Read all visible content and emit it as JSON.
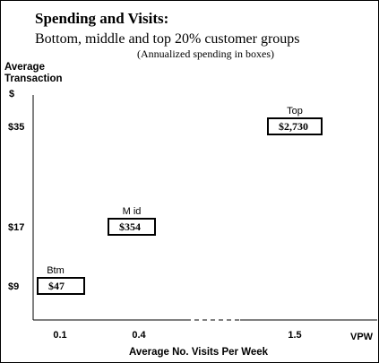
{
  "chart_data": {
    "type": "scatter",
    "title": "Spending and Visits:",
    "subtitle": "Bottom, middle and top 20% customer groups",
    "note": "(Annualized spending in boxes)",
    "ylabel": "Average Transaction",
    "yunit": "$",
    "xlabel": "Average No. Visits Per Week",
    "xunit": "VPW",
    "axis_break": true,
    "grid": false,
    "legend": "none",
    "yticks": [
      "$35",
      "$17",
      "$9"
    ],
    "xticks": [
      "0.1",
      "0.4",
      "1.5"
    ],
    "points": [
      {
        "label": "Btm",
        "x": 0.1,
        "y": 9,
        "annual": "$47"
      },
      {
        "label": "M id",
        "x": 0.4,
        "y": 17,
        "annual": "$354"
      },
      {
        "label": "Top",
        "x": 1.5,
        "y": 35,
        "annual": "$2,730"
      }
    ]
  }
}
